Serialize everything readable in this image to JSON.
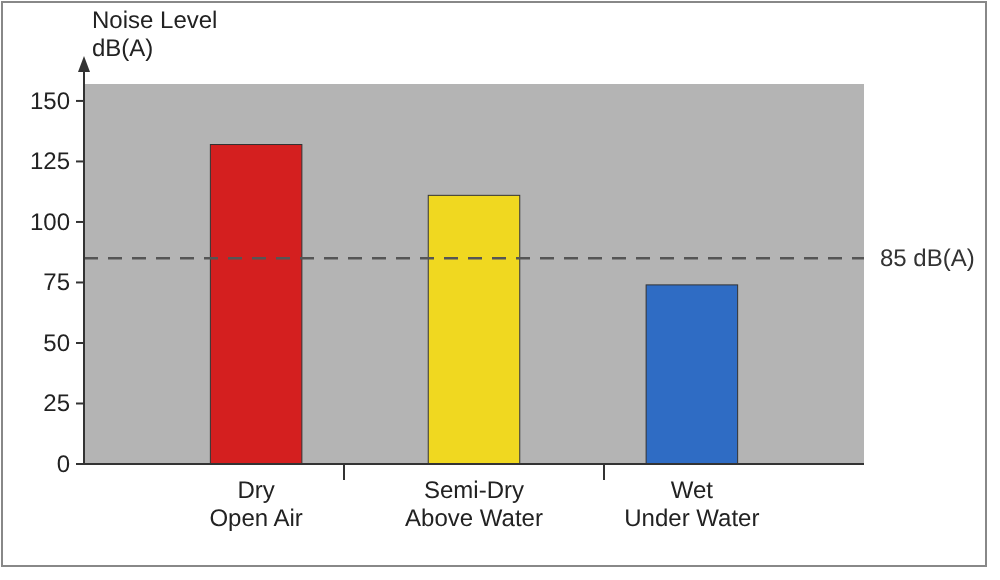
{
  "chart_data": {
    "type": "bar",
    "ylabel": "Noise Level\ndB(A)",
    "categories": [
      "Dry\nOpen Air",
      "Semi-Dry\nAbove Water",
      "Wet\nUnder Water"
    ],
    "values": [
      132,
      111,
      74
    ],
    "colors": [
      "#d41f1f",
      "#f0d820",
      "#2f6cc4"
    ],
    "ylim": [
      0,
      157
    ],
    "yticks": [
      0,
      25,
      50,
      75,
      100,
      125,
      150
    ],
    "grid": false,
    "ref_lines": [
      {
        "axis": "y",
        "value": 85,
        "label": "85 dB(A)",
        "color": "#555555",
        "line_style": "dashed"
      }
    ]
  }
}
